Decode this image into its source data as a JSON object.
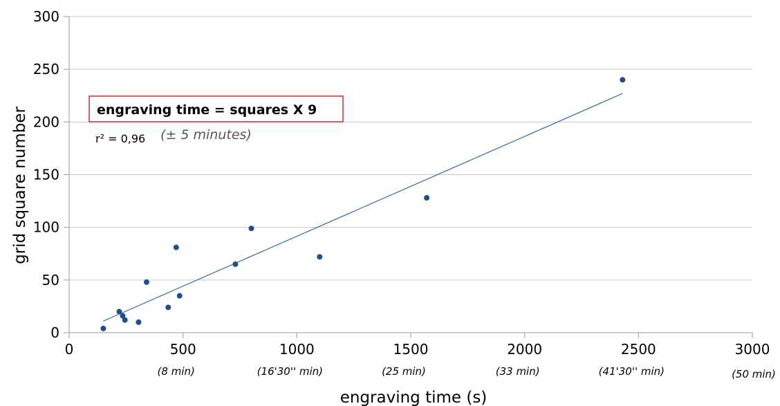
{
  "chart_data": {
    "type": "scatter",
    "title": "",
    "xlabel": "engraving time (s)",
    "ylabel": "grid square number",
    "xlim": [
      0,
      3000
    ],
    "ylim": [
      0,
      300
    ],
    "x_ticks": [
      0,
      500,
      1000,
      1500,
      2000,
      2500,
      3000
    ],
    "x_tick_labels": [
      "0",
      "500",
      "1000",
      "1500",
      "2000",
      "2500",
      "3000"
    ],
    "x_tick_sublabels": [
      "",
      "(8 min)",
      "(16'30'' min)",
      "(25 min)",
      "(33 min)",
      "(41'30'' min)",
      "(50 min)"
    ],
    "y_ticks": [
      0,
      50,
      100,
      150,
      200,
      250,
      300
    ],
    "y_tick_labels": [
      "0",
      "50",
      "100",
      "150",
      "200",
      "250",
      "300"
    ],
    "grid": "horizontal",
    "legend": "none",
    "series": [
      {
        "points": [
          {
            "x": 150,
            "y": 4
          },
          {
            "x": 220,
            "y": 20
          },
          {
            "x": 235,
            "y": 16
          },
          {
            "x": 245,
            "y": 12
          },
          {
            "x": 305,
            "y": 10
          },
          {
            "x": 340,
            "y": 48
          },
          {
            "x": 435,
            "y": 24
          },
          {
            "x": 470,
            "y": 81
          },
          {
            "x": 485,
            "y": 35
          },
          {
            "x": 730,
            "y": 65
          },
          {
            "x": 800,
            "y": 99
          },
          {
            "x": 1100,
            "y": 72
          },
          {
            "x": 1570,
            "y": 128
          },
          {
            "x": 2430,
            "y": 240
          }
        ]
      }
    ],
    "trendline": {
      "x": [
        150,
        2430
      ],
      "y": [
        11,
        227
      ]
    },
    "annotations": {
      "formula": "engraving time = squares X 9",
      "r2": "r² = 0,96",
      "tolerance": "(± 5 minutes)"
    },
    "colors": {
      "points": "#1f4e8c",
      "trendline": "#2e6aa8",
      "gridline": "#c8c8c8",
      "formula_box": "#d12828"
    }
  }
}
